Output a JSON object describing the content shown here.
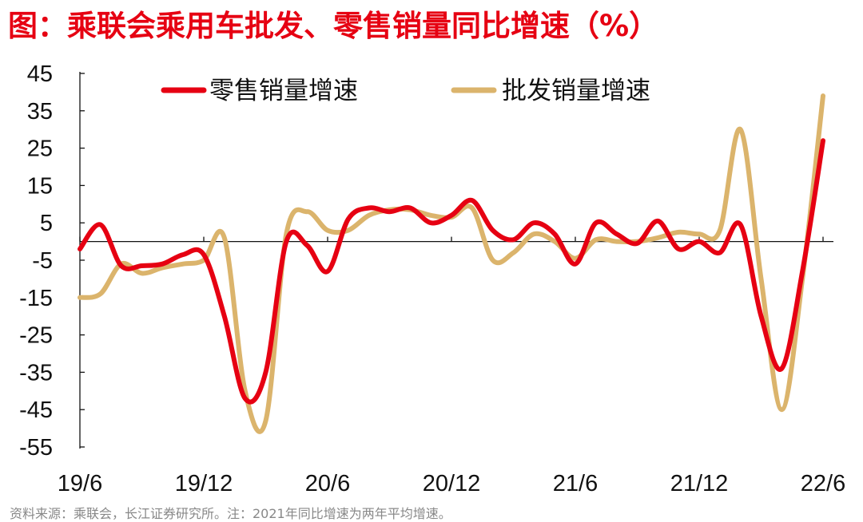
{
  "chart_data": {
    "type": "line",
    "title": "图：乘联会乘用车批发、零售销量同比增速（%）",
    "source": "资料来源：乘联会，长江证券研究所。注：2021年同比增速为两年平均增速。",
    "x": [
      "19/6",
      "19/7",
      "19/8",
      "19/9",
      "19/10",
      "19/11",
      "19/12",
      "20/1",
      "20/2",
      "20/3",
      "20/4",
      "20/5",
      "20/6",
      "20/7",
      "20/8",
      "20/9",
      "20/10",
      "20/11",
      "20/12",
      "21/1",
      "21/2",
      "21/3",
      "21/4",
      "21/5",
      "21/6",
      "21/7",
      "21/8",
      "21/9",
      "21/10",
      "21/11",
      "21/12",
      "22/1",
      "22/2",
      "22/3",
      "22/4",
      "22/5",
      "22/6"
    ],
    "x_tick_labels": [
      "19/6",
      "19/12",
      "20/6",
      "20/12",
      "21/6",
      "21/12",
      "22/6"
    ],
    "ylim": [
      -55,
      45
    ],
    "y_ticks": [
      "45",
      "35",
      "25",
      "15",
      "5",
      "-5",
      "-15",
      "-25",
      "-35",
      "-45",
      "-55"
    ],
    "legend_position": "top",
    "grid": false,
    "series": [
      {
        "name": "零售销量增速",
        "color": "#e60012",
        "values": [
          -2,
          4.5,
          -6.5,
          -6.5,
          -6,
          -3.5,
          -3.5,
          -20,
          -42,
          -35,
          0,
          -1,
          -8,
          6,
          9,
          8,
          9,
          5,
          7,
          11,
          3,
          0.5,
          5,
          2,
          -6,
          5,
          2,
          -0.5,
          5.5,
          -2,
          0,
          -3,
          4.5,
          -20,
          -34,
          -8,
          27
        ]
      },
      {
        "name": "批发销量增速",
        "color": "#dbb46c",
        "values": [
          -15,
          -14,
          -6,
          -8.5,
          -7,
          -6,
          -5,
          1,
          -40,
          -48,
          2,
          8,
          3,
          3,
          7,
          8.5,
          8.5,
          7,
          6.5,
          9,
          -5,
          -3,
          2,
          0,
          -4.5,
          0.5,
          0,
          0,
          1,
          2.5,
          2,
          3,
          30,
          -10,
          -45,
          -10,
          39
        ]
      }
    ]
  }
}
